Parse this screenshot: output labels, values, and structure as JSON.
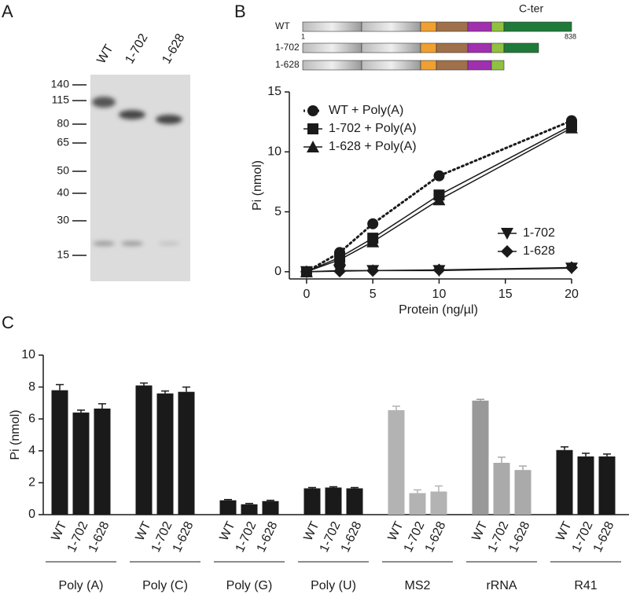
{
  "panel_labels": [
    "A",
    "B",
    "C"
  ],
  "gel": {
    "lanes": [
      "WT",
      "1-702",
      "1-628"
    ],
    "markers": [
      140,
      115,
      80,
      65,
      50,
      40,
      30,
      15
    ]
  },
  "domains": {
    "constructs": [
      "WT",
      "1-702",
      "1-628"
    ],
    "c_ter": "C-ter",
    "start": "1",
    "end": "838"
  },
  "chart_data": [
    {
      "type": "line",
      "x_label": "Protein (ng/µl)",
      "y_label": "Pi (nmol)",
      "x": [
        0,
        2.5,
        5,
        10,
        20
      ],
      "xlim": [
        -1.3,
        20
      ],
      "xticks": [
        0,
        5,
        10,
        15,
        20
      ],
      "ylim": [
        -0.6,
        15
      ],
      "yticks": [
        0,
        5,
        10,
        15
      ],
      "series": [
        {
          "name": "WT + Poly(A)",
          "color": "#1a1a1a",
          "marker": "circle",
          "dash": "dotted",
          "legend": "upper left",
          "values": [
            0,
            1.6,
            4.0,
            8.0,
            12.6
          ]
        },
        {
          "name": "1-702 + Poly(A)",
          "color": "#1a1a1a",
          "marker": "square",
          "dash": "solid",
          "legend": "upper left",
          "values": [
            0,
            1.2,
            2.8,
            6.4,
            12.2
          ]
        },
        {
          "name": "1-628 + Poly(A)",
          "color": "#1a1a1a",
          "marker": "triangle",
          "dash": "solid",
          "legend": "upper left",
          "values": [
            0,
            1.0,
            2.5,
            6.0,
            12.0
          ]
        },
        {
          "name": "1-702",
          "color": "#1a1a1a",
          "marker": "triangle-down",
          "dash": "solid",
          "legend": "lower right",
          "values": [
            0,
            0.1,
            0.1,
            0.1,
            0.3
          ]
        },
        {
          "name": "1-628",
          "color": "#1a1a1a",
          "marker": "diamond",
          "dash": "solid",
          "legend": "lower right",
          "values": [
            0,
            0.05,
            0.1,
            0.15,
            0.35
          ]
        }
      ]
    },
    {
      "type": "grouped_bar",
      "y_label": "Pi (nmol)",
      "ylim": [
        0,
        10
      ],
      "yticks": [
        0,
        2,
        4,
        6,
        8,
        10
      ],
      "groups": [
        {
          "name": "Poly (A)",
          "bars": [
            "WT",
            "1-702",
            "1-628"
          ],
          "colors": [
            "#1a1a1a",
            "#1a1a1a",
            "#1a1a1a"
          ],
          "values": [
            7.8,
            6.4,
            6.65
          ],
          "errors": [
            0.35,
            0.15,
            0.3
          ]
        },
        {
          "name": "Poly (C)",
          "bars": [
            "WT",
            "1-702",
            "1-628"
          ],
          "colors": [
            "#1a1a1a",
            "#1a1a1a",
            "#1a1a1a"
          ],
          "values": [
            8.1,
            7.6,
            7.7
          ],
          "errors": [
            0.15,
            0.15,
            0.3
          ]
        },
        {
          "name": "Poly (G)",
          "bars": [
            "WT",
            "1-702",
            "1-628"
          ],
          "colors": [
            "#1a1a1a",
            "#1a1a1a",
            "#1a1a1a"
          ],
          "values": [
            0.9,
            0.65,
            0.85
          ],
          "errors": [
            0.05,
            0.05,
            0.05
          ]
        },
        {
          "name": "Poly (U)",
          "bars": [
            "WT",
            "1-702",
            "1-628"
          ],
          "colors": [
            "#1a1a1a",
            "#1a1a1a",
            "#1a1a1a"
          ],
          "values": [
            1.65,
            1.7,
            1.65
          ],
          "errors": [
            0.05,
            0.05,
            0.05
          ]
        },
        {
          "name": "MS2",
          "bars": [
            "WT",
            "1-702",
            "1-628"
          ],
          "colors": [
            "#b3b3b3",
            "#b3b3b3",
            "#b3b3b3"
          ],
          "values": [
            6.55,
            1.35,
            1.45
          ],
          "errors": [
            0.25,
            0.2,
            0.35
          ]
        },
        {
          "name": "rRNA",
          "bars": [
            "WT",
            "1-702",
            "1-628"
          ],
          "colors": [
            "#999999",
            "#aaaaaa",
            "#aaaaaa"
          ],
          "values": [
            7.15,
            3.25,
            2.8
          ],
          "errors": [
            0.08,
            0.35,
            0.25
          ]
        },
        {
          "name": "R41",
          "bars": [
            "WT",
            "1-702",
            "1-628"
          ],
          "colors": [
            "#1a1a1a",
            "#1a1a1a",
            "#1a1a1a"
          ],
          "values": [
            4.05,
            3.65,
            3.65
          ],
          "errors": [
            0.2,
            0.2,
            0.15
          ]
        }
      ]
    }
  ]
}
